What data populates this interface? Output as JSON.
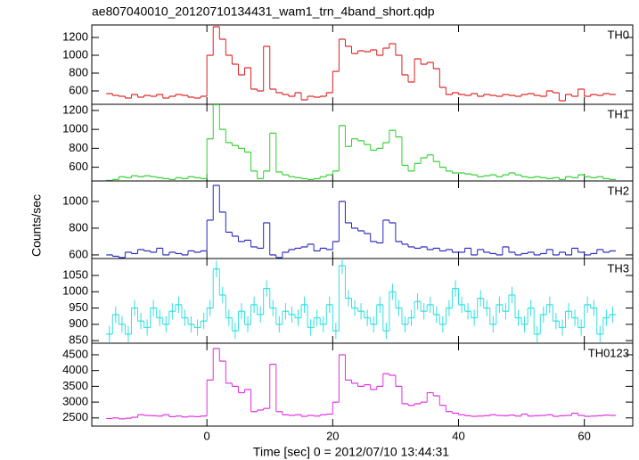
{
  "chart_data": {
    "type": "step",
    "title": "ae807040010_20120710134431_wam1_trn_4band_short.qdp",
    "xlabel": "Time [sec] 0 = 2012/07/10 13:44:31",
    "ylabel": "Counts/sec",
    "xlim": [
      -18.3,
      67.7
    ],
    "xticks": [
      0,
      20,
      40,
      60
    ],
    "bins": [
      -16,
      -15,
      -14,
      -13,
      -12,
      -11,
      -10,
      -9,
      -8,
      -7,
      -6,
      -5,
      -4,
      -3,
      -2,
      -1,
      0,
      1,
      2,
      3,
      4,
      5,
      6,
      7,
      8,
      9,
      10,
      11,
      12,
      13,
      14,
      15,
      16,
      17,
      18,
      19,
      20,
      21,
      22,
      23,
      24,
      25,
      26,
      27,
      28,
      29,
      30,
      31,
      32,
      33,
      34,
      35,
      36,
      37,
      38,
      39,
      40,
      41,
      42,
      43,
      44,
      45,
      46,
      47,
      48,
      49,
      50,
      51,
      52,
      53,
      54,
      55,
      56,
      57,
      58,
      59,
      60,
      61,
      62,
      63,
      64,
      65
    ],
    "panels": [
      {
        "name": "TH0",
        "color": "#e02020",
        "ylim": [
          450,
          1340
        ],
        "yticks": [
          600,
          800,
          1000,
          1200
        ],
        "values": [
          570,
          550,
          540,
          520,
          560,
          530,
          550,
          540,
          560,
          520,
          540,
          560,
          550,
          530,
          520,
          540,
          1000,
          1320,
          1180,
          1000,
          900,
          780,
          860,
          620,
          600,
          1100,
          620,
          580,
          560,
          540,
          580,
          500,
          540,
          530,
          540,
          580,
          820,
          1180,
          1100,
          1020,
          1050,
          1040,
          1060,
          1000,
          1080,
          1130,
          1000,
          780,
          700,
          960,
          900,
          920,
          850,
          640,
          560,
          580,
          560,
          550,
          570,
          540,
          560,
          550,
          540,
          560,
          550,
          540,
          560,
          570,
          550,
          540,
          600,
          580,
          490,
          560,
          540,
          620,
          540,
          560,
          550,
          570,
          560
        ]
      },
      {
        "name": "TH1",
        "color": "#30d030",
        "ylim": [
          455,
          1265
        ],
        "yticks": [
          600,
          800,
          1000,
          1200
        ],
        "values": [
          460,
          470,
          500,
          490,
          510,
          500,
          510,
          500,
          490,
          480,
          470,
          490,
          480,
          500,
          490,
          480,
          900,
          1260,
          1000,
          860,
          830,
          800,
          760,
          560,
          480,
          560,
          960,
          550,
          520,
          500,
          490,
          480,
          470,
          480,
          500,
          520,
          560,
          1040,
          820,
          900,
          880,
          840,
          780,
          800,
          860,
          990,
          920,
          620,
          560,
          640,
          700,
          730,
          660,
          600,
          560,
          540,
          540,
          530,
          520,
          500,
          510,
          520,
          500,
          520,
          540,
          520,
          500,
          490,
          500,
          490,
          480,
          490,
          470,
          500,
          490,
          520,
          500,
          490,
          500,
          480,
          470
        ]
      },
      {
        "name": "TH2",
        "color": "#2828c0",
        "ylim": [
          573,
          1153
        ],
        "yticks": [
          600,
          800,
          1000
        ],
        "values": [
          600,
          590,
          580,
          620,
          610,
          640,
          630,
          620,
          650,
          600,
          620,
          610,
          600,
          630,
          620,
          630,
          860,
          1120,
          920,
          770,
          740,
          700,
          710,
          660,
          650,
          840,
          600,
          580,
          620,
          640,
          650,
          660,
          680,
          630,
          650,
          640,
          700,
          1000,
          840,
          800,
          780,
          760,
          700,
          690,
          860,
          840,
          700,
          680,
          660,
          650,
          660,
          640,
          650,
          630,
          640,
          620,
          620,
          650,
          600,
          640,
          620,
          610,
          600,
          660,
          620,
          600,
          610,
          620,
          600,
          610,
          640,
          600,
          620,
          600,
          650,
          620,
          600,
          610,
          640,
          620,
          630
        ]
      },
      {
        "name": "TH3",
        "color": "#30e0e0",
        "ylim": [
          842,
          1102
        ],
        "yticks": [
          850,
          900,
          950,
          1000,
          1050
        ],
        "yerr": 25,
        "values": [
          870,
          930,
          900,
          870,
          950,
          910,
          890,
          950,
          920,
          900,
          940,
          960,
          920,
          900,
          890,
          910,
          950,
          1070,
          990,
          920,
          880,
          940,
          900,
          960,
          930,
          1010,
          950,
          900,
          940,
          930,
          920,
          960,
          890,
          920,
          900,
          960,
          880,
          1080,
          980,
          950,
          940,
          920,
          900,
          960,
          880,
          1000,
          950,
          900,
          920,
          970,
          940,
          960,
          930,
          900,
          950,
          1010,
          960,
          940,
          920,
          980,
          950,
          900,
          960,
          940,
          990,
          920,
          900,
          950,
          870,
          930,
          960,
          910,
          890,
          940,
          920,
          890,
          960,
          950,
          870,
          920,
          930
        ]
      },
      {
        "name": "TH0123",
        "color": "#e030e0",
        "ylim": [
          2240,
          4866
        ],
        "yticks": [
          2500,
          3000,
          3500,
          4000,
          4500
        ],
        "values": [
          2480,
          2500,
          2470,
          2490,
          2520,
          2600,
          2580,
          2570,
          2560,
          2600,
          2540,
          2560,
          2530,
          2550,
          2540,
          2560,
          3700,
          4700,
          4300,
          3600,
          3500,
          3300,
          3400,
          2700,
          2750,
          2800,
          4200,
          2700,
          2600,
          2580,
          2600,
          2550,
          2580,
          2560,
          2600,
          2620,
          3000,
          4500,
          3700,
          3600,
          3500,
          3550,
          3400,
          3500,
          3900,
          3850,
          3500,
          2950,
          2900,
          2950,
          3000,
          3300,
          3200,
          2900,
          2700,
          2650,
          2600,
          2570,
          2550,
          2560,
          2570,
          2600,
          2580,
          2570,
          2590,
          2560,
          2620,
          2560,
          2570,
          2580,
          2600,
          2550,
          2570,
          2580,
          2650,
          2580,
          2550,
          2560,
          2570,
          2590,
          2580
        ]
      }
    ]
  }
}
